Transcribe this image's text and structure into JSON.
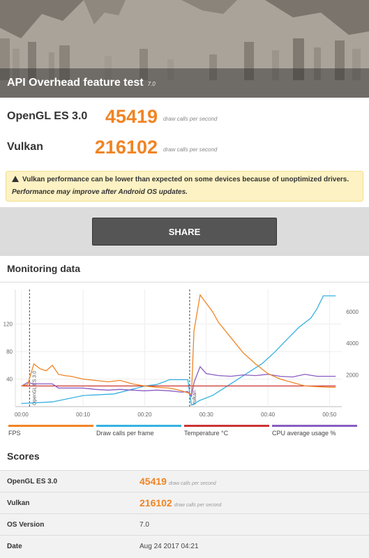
{
  "header": {
    "title": "API Overhead feature test",
    "version": "7.0"
  },
  "results": [
    {
      "label": "OpenGL ES 3.0",
      "score": "45419",
      "unit": "draw calls per second"
    },
    {
      "label": "Vulkan",
      "score": "216102",
      "unit": "draw calls per second"
    }
  ],
  "warning": {
    "icon": "warning-triangle-icon",
    "line1": "Vulkan performance can be lower than expected on some devices because of unoptimized drivers.",
    "line2": "Performance may improve after Android OS updates."
  },
  "share": {
    "label": "SHARE"
  },
  "monitoring": {
    "title": "Monitoring data",
    "legend": [
      {
        "label": "FPS",
        "color": "#f08424"
      },
      {
        "label": "Draw calls per frame",
        "color": "#36b1e2"
      },
      {
        "label": "Temperature °C",
        "color": "#cc3333"
      },
      {
        "label": "CPU average usage %",
        "color": "#8a5cc2"
      }
    ],
    "markers": [
      "OpenGL ES 3.0",
      "Vulkan"
    ]
  },
  "chart_data": {
    "type": "line",
    "x_ticks": [
      "00:00",
      "00:10",
      "00:20",
      "00:30",
      "00:40",
      "00:50"
    ],
    "x_tick_seconds": [
      0,
      10,
      20,
      30,
      40,
      50
    ],
    "xlim": [
      -1,
      52
    ],
    "y_left_ticks": [
      "40",
      "80",
      "120"
    ],
    "y_left_tick_values": [
      40,
      80,
      120
    ],
    "ylim_left": [
      0,
      170
    ],
    "y_right_ticks": [
      "2000",
      "4000",
      "6000"
    ],
    "y_right_tick_values": [
      2000,
      4000,
      6000
    ],
    "ylim_right": [
      0,
      7400
    ],
    "markers": [
      {
        "label": "OpenGL ES 3.0",
        "x": 1.3
      },
      {
        "label": "Vulkan",
        "x": 27.3
      }
    ],
    "series": [
      {
        "name": "FPS",
        "axis": "left",
        "color": "#f08424",
        "x": [
          0,
          1,
          2,
          3,
          4,
          5,
          6,
          7,
          8,
          10,
          12,
          14,
          16,
          18,
          20,
          22,
          24,
          26,
          27,
          27.6,
          28,
          29,
          30,
          31,
          32,
          34,
          36,
          38,
          40,
          42,
          44,
          46,
          48,
          50,
          51
        ],
        "y": [
          30,
          32,
          62,
          55,
          52,
          60,
          47,
          45,
          44,
          40,
          38,
          36,
          38,
          33,
          30,
          28,
          27,
          23,
          20,
          18,
          110,
          162,
          150,
          138,
          122,
          100,
          78,
          62,
          48,
          40,
          35,
          30,
          29,
          28,
          28
        ]
      },
      {
        "name": "Draw calls per frame",
        "axis": "right",
        "color": "#36b1e2",
        "x": [
          0,
          5,
          10,
          15,
          20,
          22,
          24,
          26,
          27,
          27.6,
          29,
          31,
          33,
          35,
          37,
          39,
          41,
          43,
          45,
          47,
          48,
          49,
          50,
          51
        ],
        "y": [
          200,
          300,
          700,
          800,
          1300,
          1400,
          1700,
          1700,
          1700,
          100,
          400,
          700,
          1200,
          1700,
          2200,
          2700,
          3400,
          4200,
          5000,
          5600,
          6200,
          7000,
          7000,
          7000
        ]
      },
      {
        "name": "Temperature °C",
        "axis": "left",
        "color": "#cc3333",
        "x": [
          0,
          51
        ],
        "y": [
          30,
          30
        ]
      },
      {
        "name": "CPU average usage %",
        "axis": "left",
        "color": "#8a5cc2",
        "x": [
          0,
          1,
          2,
          3,
          5,
          6,
          8,
          10,
          12,
          14,
          16,
          18,
          20,
          22,
          24,
          26,
          27,
          27.6,
          28,
          29,
          30,
          32,
          34,
          36,
          38,
          40,
          42,
          44,
          46,
          48,
          50,
          51
        ],
        "y": [
          30,
          35,
          33,
          33,
          33,
          27,
          27,
          27,
          25,
          24,
          25,
          24,
          23,
          24,
          23,
          21,
          22,
          15,
          35,
          58,
          48,
          45,
          44,
          46,
          45,
          47,
          44,
          43,
          47,
          44,
          44,
          44
        ]
      }
    ]
  },
  "scores": {
    "title": "Scores",
    "rows": [
      {
        "key": "OpenGL ES 3.0",
        "value": "45419",
        "unit": "draw calls per second"
      },
      {
        "key": "Vulkan",
        "value": "216102",
        "unit": "draw calls per second"
      },
      {
        "key": "OS Version",
        "value": "7.0"
      },
      {
        "key": "Date",
        "value": "Aug 24 2017 04:21"
      }
    ]
  }
}
